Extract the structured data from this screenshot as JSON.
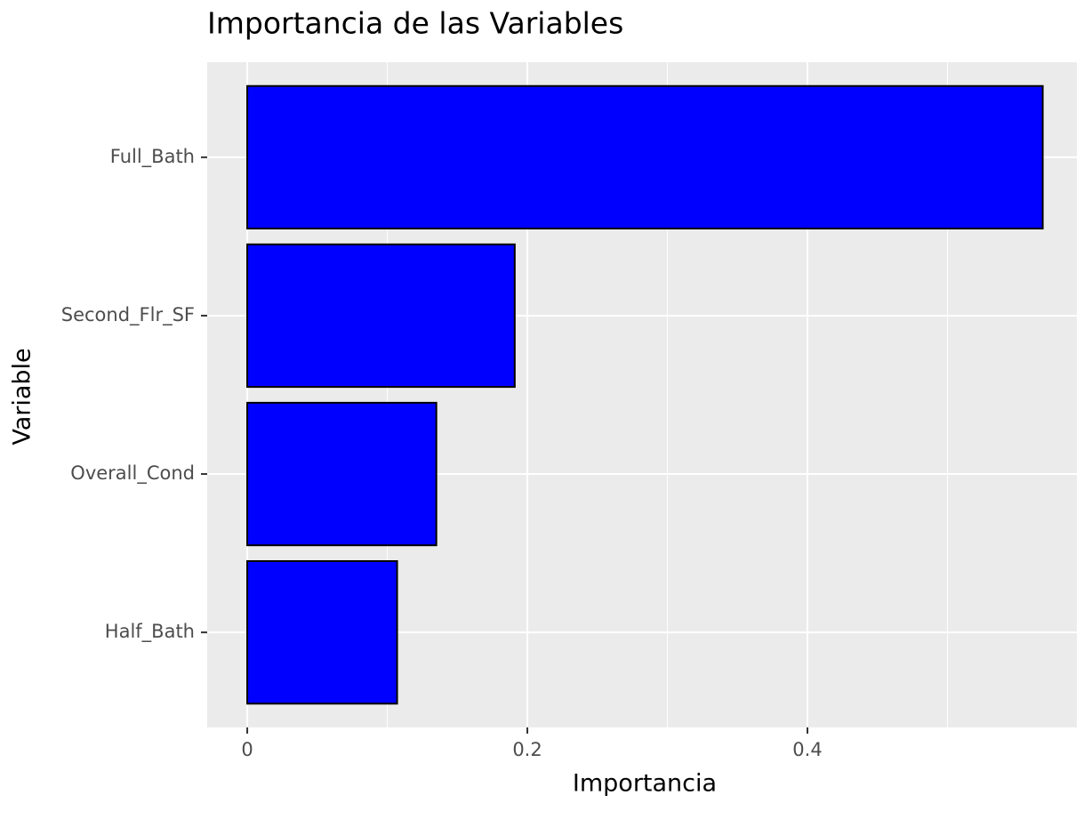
{
  "chart_data": {
    "type": "bar",
    "orientation": "horizontal",
    "title": "Importancia de las Variables",
    "x_label": "Importancia",
    "y_label": "Variable",
    "categories": [
      "Full_Bath",
      "Second_Flr_SF",
      "Overall_Cond",
      "Half_Bath"
    ],
    "values": [
      0.568,
      0.191,
      0.135,
      0.107
    ],
    "color": "#0000ff",
    "edge_color": "#000000",
    "xlim": [
      -0.0286,
      0.5924
    ],
    "xticks": [
      0,
      0.2,
      0.4
    ],
    "xminor": [
      0.1,
      0.3,
      0.5
    ],
    "grid": true
  }
}
